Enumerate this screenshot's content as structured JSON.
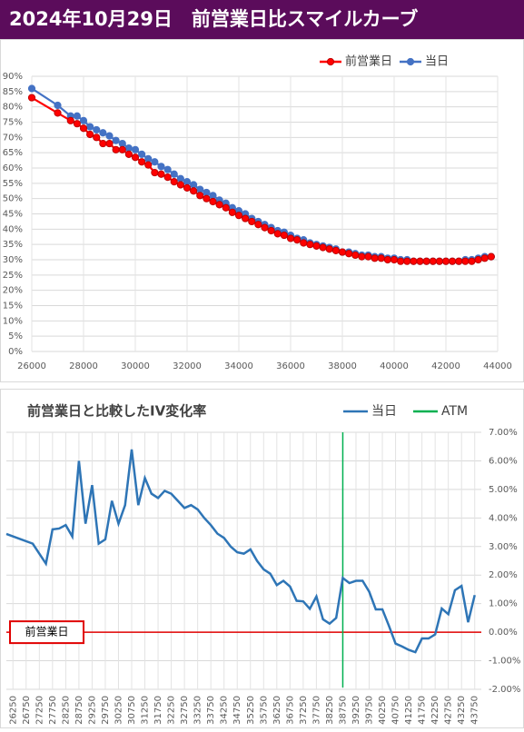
{
  "header": {
    "title": "2024年10月29日　前営業日比スマイルカーブ"
  },
  "chart_data": [
    {
      "type": "line",
      "markers": true,
      "grid": true,
      "xgrid": true,
      "x": [
        26000,
        27000,
        27500,
        27750,
        28000,
        28250,
        28500,
        28750,
        29000,
        29250,
        29500,
        29750,
        30000,
        30250,
        30500,
        30750,
        31000,
        31250,
        31500,
        31750,
        32000,
        32250,
        32500,
        32750,
        33000,
        33250,
        33500,
        33750,
        34000,
        34250,
        34500,
        34750,
        35000,
        35250,
        35500,
        35750,
        36000,
        36250,
        36500,
        36750,
        37000,
        37250,
        37500,
        37750,
        38000,
        38250,
        38500,
        38750,
        39000,
        39250,
        39500,
        39750,
        40000,
        40250,
        40500,
        40750,
        41000,
        41250,
        41500,
        41750,
        42000,
        42250,
        42500,
        42750,
        43000,
        43250,
        43500,
        43750
      ],
      "series": [
        {
          "name": "当日",
          "color": "#4472c4",
          "marker_stroke": "#4472c4",
          "values": [
            86,
            80.5,
            77,
            77,
            75.5,
            73.5,
            72.5,
            71.5,
            70.5,
            69,
            68,
            66.5,
            66,
            64.5,
            63,
            62,
            60.5,
            59.5,
            58,
            56.5,
            55.5,
            54.5,
            53,
            52,
            51,
            49.5,
            48.5,
            47,
            46,
            45,
            43.5,
            42.5,
            41.5,
            40.5,
            39.5,
            39,
            38,
            37,
            36.5,
            35.5,
            35,
            34.5,
            34,
            33.5,
            32.5,
            32.5,
            32,
            31.5,
            31.5,
            31,
            31,
            30.5,
            30.5,
            30,
            30,
            29.5,
            29.5,
            29.5,
            29.5,
            29.5,
            29.5,
            29.5,
            29.5,
            30,
            30,
            30.5,
            31,
            31
          ]
        },
        {
          "name": "前営業日",
          "color": "#ff0000",
          "marker_stroke": "#c00000",
          "values": [
            83,
            78,
            75.5,
            74.5,
            73,
            71,
            70,
            68,
            68,
            66,
            66,
            64.5,
            63.5,
            62,
            61,
            58.5,
            58,
            57,
            55.5,
            54.5,
            53.5,
            52.5,
            51,
            50,
            49,
            48,
            47,
            45.5,
            44.5,
            43.5,
            42.5,
            41.5,
            40.5,
            39.5,
            38.5,
            38,
            37,
            36.5,
            35.5,
            35,
            34.5,
            34,
            33.5,
            33,
            32.5,
            32,
            31.5,
            31,
            31,
            30.5,
            30.5,
            30,
            30,
            29.5,
            29.5,
            29.5,
            29.5,
            29.5,
            29.5,
            29.5,
            29.5,
            29.5,
            29.5,
            29.5,
            29.5,
            30,
            30.5,
            31
          ]
        }
      ],
      "xlim": [
        26000,
        44000
      ],
      "xticks": [
        26000,
        28000,
        30000,
        32000,
        34000,
        36000,
        38000,
        40000,
        42000,
        44000
      ],
      "ylim": [
        0,
        90
      ],
      "yticks": [
        {
          "value": 0,
          "label": "0%"
        },
        {
          "value": 5,
          "label": "5%"
        },
        {
          "value": 10,
          "label": "10%"
        },
        {
          "value": 15,
          "label": "15%"
        },
        {
          "value": 20,
          "label": "20%"
        },
        {
          "value": 25,
          "label": "25%"
        },
        {
          "value": 30,
          "label": "30%"
        },
        {
          "value": 35,
          "label": "35%"
        },
        {
          "value": 40,
          "label": "40%"
        },
        {
          "value": 45,
          "label": "45%"
        },
        {
          "value": 50,
          "label": "50%"
        },
        {
          "value": 55,
          "label": "55%"
        },
        {
          "value": 60,
          "label": "60%"
        },
        {
          "value": 65,
          "label": "65%"
        },
        {
          "value": 70,
          "label": "70%"
        },
        {
          "value": 75,
          "label": "75%"
        },
        {
          "value": 80,
          "label": "80%"
        },
        {
          "value": 85,
          "label": "85%"
        },
        {
          "value": 90,
          "label": "90%"
        }
      ]
    },
    {
      "type": "line",
      "markers": false,
      "grid": true,
      "xgrid": true,
      "xtick_rotation": -90,
      "title": "前営業日と比較したIV変化率",
      "x": [
        26000,
        27000,
        27500,
        27750,
        28000,
        28250,
        28500,
        28750,
        29000,
        29250,
        29500,
        29750,
        30000,
        30250,
        30500,
        30750,
        31000,
        31250,
        31500,
        31750,
        32000,
        32250,
        32500,
        32750,
        33000,
        33250,
        33500,
        33750,
        34000,
        34250,
        34500,
        34750,
        35000,
        35250,
        35500,
        35750,
        36000,
        36250,
        36500,
        36750,
        37000,
        37250,
        37500,
        37750,
        38000,
        38250,
        38500,
        38750,
        39000,
        39250,
        39500,
        39750,
        40000,
        40250,
        40500,
        40750,
        41000,
        41250,
        41500,
        41750,
        42000,
        42250,
        42500,
        42750,
        43000,
        43250,
        43500,
        43750
      ],
      "series": [
        {
          "name": "当日",
          "color": "#2e75b6",
          "values": [
            3.44,
            3.1,
            2.4,
            3.6,
            3.63,
            3.75,
            3.35,
            6.0,
            3.8,
            5.15,
            3.1,
            3.25,
            4.6,
            3.8,
            4.45,
            6.4,
            4.45,
            5.4,
            4.85,
            4.7,
            4.95,
            4.85,
            4.6,
            4.35,
            4.45,
            4.3,
            4.0,
            3.75,
            3.45,
            3.3,
            3.0,
            2.8,
            2.75,
            2.9,
            2.5,
            2.2,
            2.05,
            1.65,
            1.8,
            1.6,
            1.1,
            1.08,
            0.82,
            1.25,
            0.45,
            0.3,
            0.5,
            1.9,
            1.72,
            1.8,
            1.8,
            1.42,
            0.8,
            0.8,
            0.22,
            -0.4,
            -0.5,
            -0.62,
            -0.7,
            -0.22,
            -0.22,
            -0.08,
            0.83,
            0.63,
            1.47,
            1.62,
            0.35,
            1.3
          ]
        }
      ],
      "vlines": [
        {
          "name": "ATM",
          "color": "#00b050",
          "x": 38750
        }
      ],
      "reference_line": {
        "value": 0,
        "label": "前営業日",
        "color": "#e00000"
      },
      "xlim": [
        26000,
        44000
      ],
      "xticks": [
        26250,
        26750,
        27250,
        27750,
        28250,
        28750,
        29250,
        29750,
        30250,
        30750,
        31250,
        31750,
        32250,
        32750,
        33250,
        33750,
        34250,
        34750,
        35250,
        35750,
        36250,
        36750,
        37250,
        37750,
        38250,
        38750,
        39250,
        39750,
        40250,
        40750,
        41250,
        41750,
        42250,
        42750,
        43250,
        43750
      ],
      "ylim": [
        -2,
        7
      ],
      "yticks": [
        {
          "value": -2,
          "label": "-2.00%"
        },
        {
          "value": -1,
          "label": "-1.00%"
        },
        {
          "value": 0,
          "label": "0.00%"
        },
        {
          "value": 1,
          "label": "1.00%"
        },
        {
          "value": 2,
          "label": "2.00%"
        },
        {
          "value": 3,
          "label": "3.00%"
        },
        {
          "value": 4,
          "label": "4.00%"
        },
        {
          "value": 5,
          "label": "5.00%"
        },
        {
          "value": 6,
          "label": "6.00%"
        },
        {
          "value": 7,
          "label": "7.00%"
        }
      ]
    }
  ]
}
